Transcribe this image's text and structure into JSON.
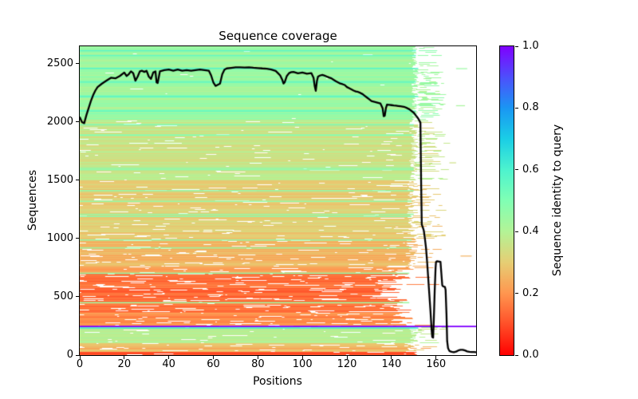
{
  "chart_data": {
    "type": "heatmap",
    "title": "Sequence coverage",
    "xlabel": "Positions",
    "ylabel": "Sequences",
    "xlim": [
      0,
      178
    ],
    "ylim": [
      0,
      2650
    ],
    "x_ticks": [
      0,
      20,
      40,
      60,
      80,
      100,
      120,
      140,
      160
    ],
    "y_ticks": [
      0,
      500,
      1000,
      1500,
      2000,
      2500
    ],
    "grid": false,
    "background": "#ffffff",
    "spine_color": "#000000",
    "colorbar": {
      "label": "Sequence identity to query",
      "ticks": [
        0.0,
        0.2,
        0.4,
        0.6,
        0.8,
        1.0
      ],
      "tick_labels": [
        "0.0",
        "0.2",
        "0.4",
        "0.6",
        "0.8",
        "1.0"
      ],
      "colormap": "rainbow_r",
      "stops": [
        {
          "v": 0.0,
          "color": "#ff0000"
        },
        {
          "v": 0.1,
          "color": "#ff4f28"
        },
        {
          "v": 0.2,
          "color": "#ff964f"
        },
        {
          "v": 0.3,
          "color": "#e6ce74"
        },
        {
          "v": 0.4,
          "color": "#b3f396"
        },
        {
          "v": 0.5,
          "color": "#80ffb4"
        },
        {
          "v": 0.6,
          "color": "#4df3ce"
        },
        {
          "v": 0.7,
          "color": "#1acee6"
        },
        {
          "v": 0.8,
          "color": "#1a96f3"
        },
        {
          "v": 0.9,
          "color": "#4d4ffc"
        },
        {
          "v": 1.0,
          "color": "#8000ff"
        }
      ]
    },
    "msa": {
      "n_sequences": 2650,
      "n_positions": 178,
      "render_seed": 11,
      "query_row": {
        "seq": 246,
        "identity": 1.0,
        "x0": 0,
        "x1": 178
      },
      "bands": [
        {
          "from": 2020,
          "to": 2650,
          "identity": 0.44,
          "jitter": 0.045,
          "gap_density": 0.015,
          "end_mean": 150.5,
          "end_jitter": 1.5,
          "frag_chance": 0.5,
          "late_start_chance": 0.0
        },
        {
          "from": 1500,
          "to": 2020,
          "identity": 0.36,
          "jitter": 0.04,
          "gap_density": 0.05,
          "end_mean": 150,
          "end_jitter": 2,
          "frag_chance": 0.45,
          "late_start_chance": 0.02
        },
        {
          "from": 1000,
          "to": 1500,
          "identity": 0.3,
          "jitter": 0.035,
          "gap_density": 0.09,
          "end_mean": 149.5,
          "end_jitter": 2.5,
          "frag_chance": 0.4,
          "late_start_chance": 0.04
        },
        {
          "from": 750,
          "to": 1000,
          "identity": 0.26,
          "jitter": 0.03,
          "gap_density": 0.13,
          "end_mean": 149,
          "end_jitter": 3,
          "frag_chance": 0.22,
          "late_start_chance": 0.05
        },
        {
          "from": 700,
          "to": 750,
          "identity": 0.21,
          "jitter": 0.025,
          "gap_density": 0.16,
          "end_mean": 146,
          "end_jitter": 5,
          "frag_chance": 0.15,
          "late_start_chance": 0.06
        },
        {
          "from": 360,
          "to": 700,
          "identity": 0.145,
          "jitter": 0.035,
          "gap_density": 0.2,
          "end_mean": 140,
          "end_jitter": 9,
          "frag_chance": 0.1,
          "late_start_chance": 0.1
        },
        {
          "from": 246,
          "to": 360,
          "identity": 0.19,
          "jitter": 0.03,
          "gap_density": 0.17,
          "end_mean": 145,
          "end_jitter": 6,
          "frag_chance": 0.12,
          "late_start_chance": 0.08
        },
        {
          "from": 105,
          "to": 246,
          "identity": 0.4,
          "jitter": 0.04,
          "gap_density": 0.06,
          "end_mean": 150,
          "end_jitter": 2,
          "frag_chance": 0.4,
          "late_start_chance": 0.0
        },
        {
          "from": 28,
          "to": 105,
          "identity": 0.26,
          "jitter": 0.04,
          "gap_density": 0.12,
          "end_mean": 148.5,
          "end_jitter": 3,
          "frag_chance": 0.25,
          "late_start_chance": 0.05
        },
        {
          "from": 0,
          "to": 28,
          "identity": 0.08,
          "jitter": 0.04,
          "gap_density": 0.06,
          "end_mean": 150,
          "end_jitter": 2,
          "frag_chance": 0.1,
          "late_start_chance": 0.0
        }
      ],
      "highlight_rows": [
        {
          "seq": 2612,
          "identity": 0.58,
          "x0": 0,
          "x1": 151
        },
        {
          "seq": 2571,
          "identity": 0.56,
          "x0": 0,
          "x1": 151
        },
        {
          "seq": 2459,
          "identity": 0.58,
          "x0": 0,
          "x1": 152
        },
        {
          "seq": 2344,
          "identity": 0.57,
          "x0": 0,
          "x1": 151
        },
        {
          "seq": 2219,
          "identity": 0.58,
          "x0": 0,
          "x1": 152
        },
        {
          "seq": 2094,
          "identity": 0.56,
          "x0": 0,
          "x1": 151
        },
        {
          "seq": 1976,
          "identity": 0.52,
          "x0": 0,
          "x1": 150
        },
        {
          "seq": 1888,
          "identity": 0.5,
          "x0": 0,
          "x1": 150
        },
        {
          "seq": 1604,
          "identity": 0.48,
          "x0": 0,
          "x1": 150
        },
        {
          "seq": 1590,
          "identity": 0.47,
          "x0": 0,
          "x1": 150
        },
        {
          "seq": 1410,
          "identity": 0.47,
          "x0": 0,
          "x1": 150
        },
        {
          "seq": 1320,
          "identity": 0.46,
          "x0": 0,
          "x1": 149
        },
        {
          "seq": 1208,
          "identity": 0.46,
          "x0": 0,
          "x1": 150
        },
        {
          "seq": 1190,
          "identity": 0.47,
          "x0": 0,
          "x1": 149
        },
        {
          "seq": 988,
          "identity": 0.46,
          "x0": 0,
          "x1": 149
        },
        {
          "seq": 920,
          "identity": 0.45,
          "x0": 0,
          "x1": 149
        },
        {
          "seq": 702,
          "identity": 0.46,
          "x0": 0,
          "x1": 148
        },
        {
          "seq": 450,
          "identity": 0.44,
          "x0": 0,
          "x1": 148
        },
        {
          "seq": 232,
          "identity": 0.62,
          "x0": 0,
          "x1": 152
        }
      ],
      "outlier_fragments": [
        {
          "seq": 2458,
          "identity": 0.45,
          "x0": 169,
          "x1": 174
        },
        {
          "seq": 2140,
          "identity": 0.42,
          "x0": 169,
          "x1": 173
        },
        {
          "seq": 1650,
          "identity": 0.35,
          "x0": 166,
          "x1": 169
        },
        {
          "seq": 850,
          "identity": 0.25,
          "x0": 171,
          "x1": 176
        }
      ]
    },
    "coverage_line": {
      "color": "#000000",
      "x": [
        0,
        1,
        2,
        3,
        4,
        5,
        6,
        7,
        8,
        10,
        12,
        14,
        16,
        18,
        20,
        21,
        22,
        23,
        24,
        25,
        26,
        27,
        28,
        29,
        30,
        31,
        32,
        33,
        34,
        34.5,
        35,
        36,
        38,
        40,
        42,
        44,
        46,
        48,
        50,
        52,
        54,
        56,
        58,
        59,
        60,
        61,
        62,
        63,
        64,
        65,
        66,
        68,
        70,
        72,
        74,
        76,
        78,
        80,
        82,
        84,
        86,
        88,
        89,
        90,
        91,
        91.5,
        92,
        93,
        94,
        95,
        96,
        98,
        100,
        102,
        104,
        105,
        105.5,
        106,
        106.5,
        107,
        108,
        109,
        110,
        111,
        112,
        113,
        114,
        115,
        116,
        117,
        118,
        119,
        120,
        121,
        122,
        123,
        124,
        125,
        126,
        127,
        128,
        129,
        130,
        131,
        132,
        133,
        134,
        135,
        136,
        136.5,
        137,
        137.5,
        138,
        139,
        140,
        141,
        142,
        143,
        144,
        145,
        146,
        147,
        148,
        149,
        150,
        151,
        152,
        153,
        153.3,
        153.6,
        154,
        154.5,
        155,
        155.5,
        156,
        156.5,
        157,
        157.5,
        158,
        158.3,
        158.7,
        159,
        159.4,
        159.8,
        160,
        160.5,
        161,
        162,
        162.4,
        162.8,
        163,
        163.5,
        164,
        164.3,
        164.7,
        165,
        165.4,
        166,
        167,
        168,
        169,
        170,
        171,
        172,
        173,
        174,
        175,
        176,
        177,
        178
      ],
      "y": [
        2040,
        2000,
        1990,
        2060,
        2120,
        2180,
        2230,
        2270,
        2300,
        2330,
        2355,
        2380,
        2375,
        2395,
        2425,
        2395,
        2410,
        2435,
        2420,
        2355,
        2390,
        2435,
        2440,
        2430,
        2440,
        2390,
        2370,
        2425,
        2435,
        2340,
        2335,
        2435,
        2445,
        2450,
        2440,
        2450,
        2440,
        2445,
        2440,
        2445,
        2450,
        2445,
        2440,
        2400,
        2340,
        2310,
        2320,
        2330,
        2410,
        2450,
        2460,
        2465,
        2470,
        2470,
        2468,
        2470,
        2466,
        2463,
        2460,
        2458,
        2450,
        2438,
        2420,
        2400,
        2360,
        2330,
        2340,
        2395,
        2420,
        2428,
        2430,
        2418,
        2425,
        2415,
        2420,
        2380,
        2310,
        2268,
        2350,
        2390,
        2400,
        2405,
        2398,
        2390,
        2382,
        2375,
        2362,
        2350,
        2340,
        2330,
        2325,
        2318,
        2300,
        2290,
        2280,
        2270,
        2262,
        2258,
        2250,
        2240,
        2225,
        2210,
        2195,
        2180,
        2175,
        2170,
        2165,
        2160,
        2120,
        2050,
        2055,
        2120,
        2150,
        2148,
        2145,
        2142,
        2140,
        2138,
        2135,
        2132,
        2128,
        2120,
        2110,
        2095,
        2080,
        2055,
        2030,
        1995,
        1500,
        1120,
        1100,
        1070,
        1000,
        920,
        800,
        660,
        520,
        380,
        220,
        155,
        150,
        300,
        550,
        750,
        800,
        806,
        804,
        800,
        700,
        600,
        592,
        588,
        585,
        560,
        350,
        120,
        60,
        35,
        28,
        25,
        30,
        40,
        45,
        46,
        40,
        32,
        28,
        27,
        26,
        25
      ]
    }
  }
}
